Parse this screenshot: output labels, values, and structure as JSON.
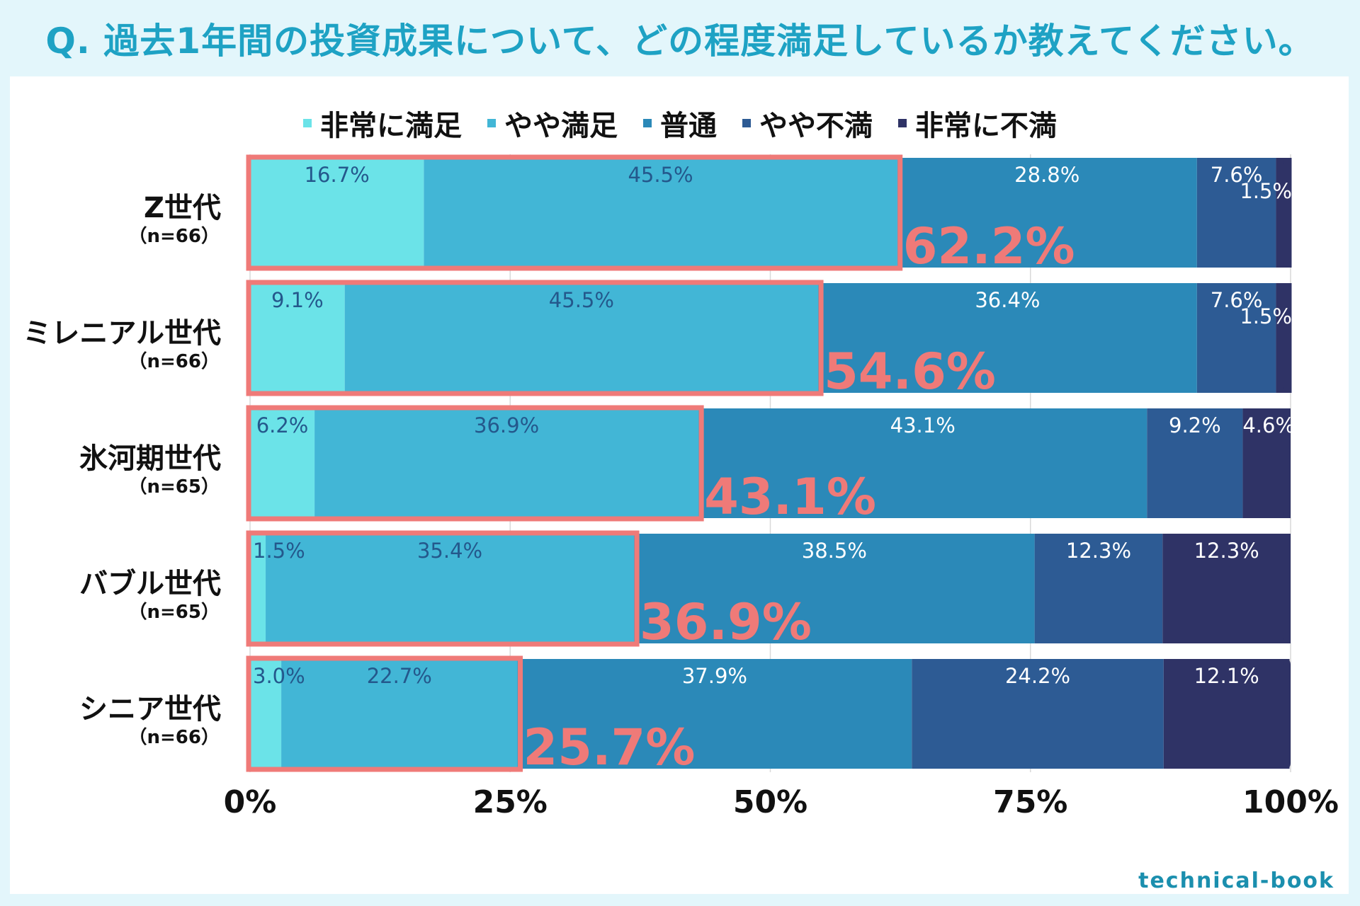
{
  "title": "Q. 過去1年間の投資成果について、どの程度満足しているか教えてください。",
  "brand": "technical-book",
  "colors": {
    "background": "#e3f6fb",
    "panel": "#ffffff",
    "title": "#1ea2c4",
    "highlight": "#ef7a78",
    "series": [
      "#6be3e8",
      "#42b6d6",
      "#2b89b8",
      "#2d5b94",
      "#2f3366"
    ],
    "label_dark": "#24588c",
    "label_light": "#ffffff"
  },
  "chart_data": {
    "type": "bar",
    "orientation": "horizontal",
    "stacked": true,
    "title": "Q. 過去1年間の投資成果について、どの程度満足しているか教えてください。",
    "xlim": [
      0,
      100
    ],
    "xticks": [
      "0%",
      "25%",
      "50%",
      "75%",
      "100%"
    ],
    "xtick_values": [
      0,
      25,
      50,
      75,
      100
    ],
    "grid": true,
    "legend_position": "top-center",
    "categories": [
      {
        "name": "Z世代",
        "n": "（n=66）"
      },
      {
        "name": "ミレニアル世代",
        "n": "（n=66）"
      },
      {
        "name": "氷河期世代",
        "n": "（n=65）"
      },
      {
        "name": "バブル世代",
        "n": "（n=65）"
      },
      {
        "name": "シニア世代",
        "n": "（n=66）"
      }
    ],
    "series": [
      {
        "name": "非常に満足",
        "values": [
          16.7,
          9.1,
          6.2,
          1.5,
          3.0
        ],
        "labels": [
          "16.7%",
          "9.1%",
          "6.2%",
          "1.5%",
          "3.0%"
        ]
      },
      {
        "name": "やや満足",
        "values": [
          45.5,
          45.5,
          36.9,
          35.4,
          22.7
        ],
        "labels": [
          "45.5%",
          "45.5%",
          "36.9%",
          "35.4%",
          "22.7%"
        ]
      },
      {
        "name": "普通",
        "values": [
          28.8,
          36.4,
          43.1,
          38.5,
          37.9
        ],
        "labels": [
          "28.8%",
          "36.4%",
          "43.1%",
          "38.5%",
          "37.9%"
        ]
      },
      {
        "name": "やや不満",
        "values": [
          7.6,
          7.6,
          9.2,
          12.3,
          24.2
        ],
        "labels": [
          "7.6%",
          "7.6%",
          "9.2%",
          "12.3%",
          "24.2%"
        ]
      },
      {
        "name": "非常に不満",
        "values": [
          1.5,
          1.5,
          4.6,
          12.3,
          12.1
        ],
        "labels": [
          "1.5%",
          "1.5%",
          "4.6%",
          "12.3%",
          "12.1%"
        ]
      }
    ],
    "highlight_totals": {
      "values": [
        62.2,
        54.6,
        43.1,
        36.9,
        25.7
      ],
      "labels": [
        "62.2%",
        "54.6%",
        "43.1%",
        "36.9%",
        "25.7%"
      ]
    }
  }
}
